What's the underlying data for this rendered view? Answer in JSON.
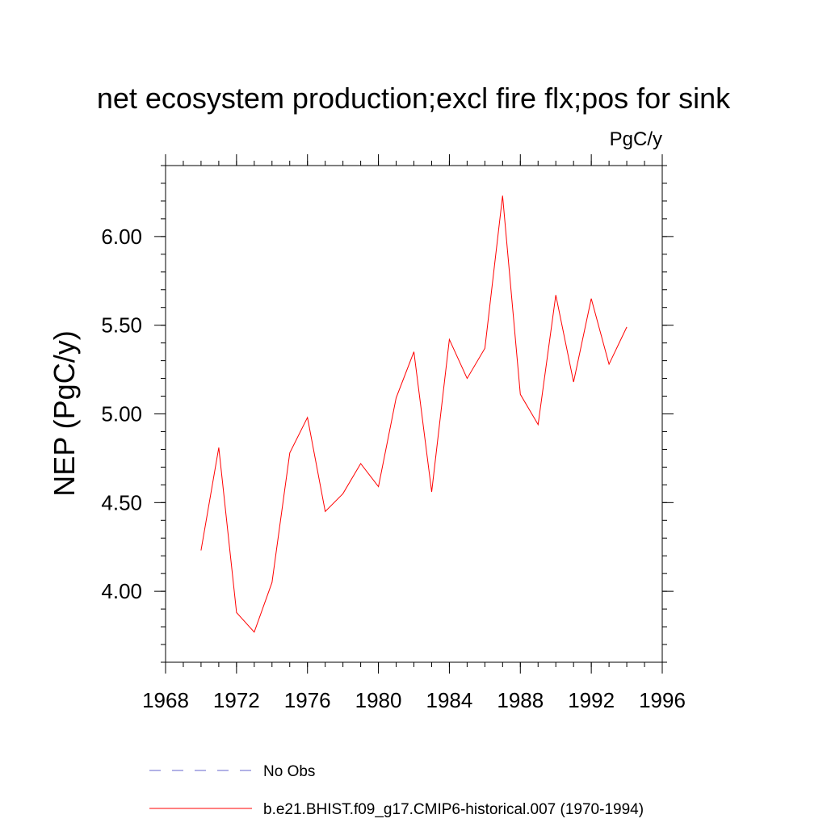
{
  "chart_data": {
    "type": "line",
    "title": "net ecosystem production;excl fire flx;pos for sink",
    "units_label": "PgC/y",
    "ylabel": "NEP  (PgC/y)",
    "xlabel": "",
    "xlim": [
      1968,
      1996
    ],
    "ylim": [
      3.6,
      6.4
    ],
    "x_ticks": [
      1968,
      1972,
      1976,
      1980,
      1984,
      1988,
      1992,
      1996
    ],
    "x_tick_labels": [
      "1968",
      "1972",
      "1976",
      "1980",
      "1984",
      "1988",
      "1992",
      "1996"
    ],
    "y_ticks": [
      4.0,
      4.5,
      5.0,
      5.5,
      6.0
    ],
    "y_tick_labels": [
      "4.00",
      "4.50",
      "5.00",
      "5.50",
      "6.00"
    ],
    "grid": false,
    "legend_position": "bottom",
    "series": [
      {
        "name": "b.e21.BHIST.f09_g17.CMIP6-historical.007 (1970-1994)",
        "color": "#ff0000",
        "style": "solid",
        "x": [
          1970,
          1971,
          1972,
          1973,
          1974,
          1975,
          1976,
          1977,
          1978,
          1979,
          1980,
          1981,
          1982,
          1983,
          1984,
          1985,
          1986,
          1987,
          1988,
          1989,
          1990,
          1991,
          1992,
          1993,
          1994
        ],
        "values": [
          4.23,
          4.81,
          3.88,
          3.77,
          4.05,
          4.78,
          4.98,
          4.45,
          4.55,
          4.72,
          4.59,
          5.09,
          5.35,
          4.56,
          5.42,
          5.2,
          5.37,
          6.23,
          5.11,
          4.94,
          5.67,
          5.18,
          5.65,
          5.28,
          5.49
        ]
      }
    ],
    "legend": [
      {
        "label": "No Obs",
        "color": "#6666cc",
        "style": "dashed"
      },
      {
        "label": "b.e21.BHIST.f09_g17.CMIP6-historical.007 (1970-1994)",
        "color": "#ff0000",
        "style": "solid"
      }
    ]
  }
}
